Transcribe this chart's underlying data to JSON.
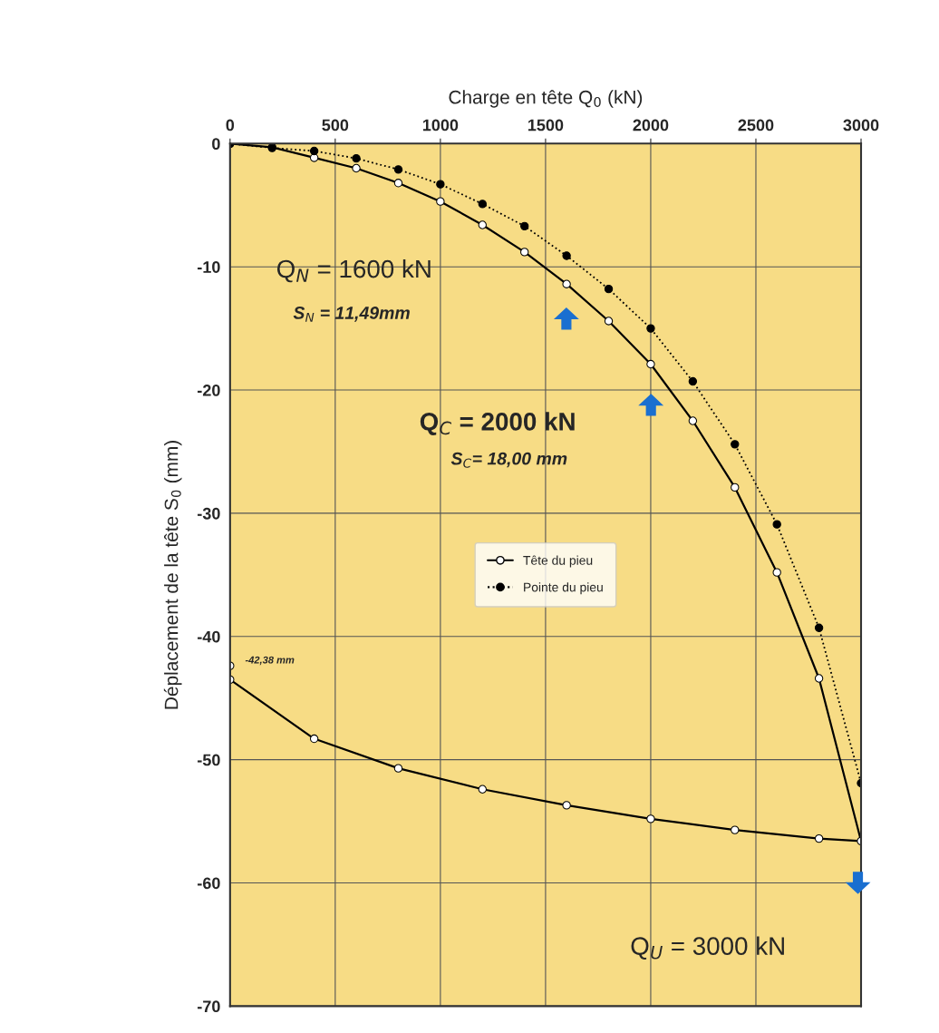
{
  "chart_data": {
    "type": "line",
    "xlabel": "Charge en tête Q$_{0}$ (kN)",
    "ylabel": "Déplacement de la tête S$_{0}$ (mm)",
    "xlim": [
      0,
      3000
    ],
    "xticks": [
      0,
      500,
      1000,
      1500,
      2000,
      2500,
      3000
    ],
    "ylim": [
      -70,
      0
    ],
    "yticks": [
      -70,
      -60,
      -50,
      -40,
      -30,
      -20,
      -10,
      0
    ],
    "grid": true,
    "legend": "center",
    "series": [
      {
        "name": "Tête du pieu",
        "type": "line",
        "color": "#000000",
        "marker": "circle",
        "line_style": "solid",
        "x": [
          0,
          200,
          400,
          600,
          800,
          1000,
          1200,
          1400,
          1600,
          1800,
          2000,
          2200,
          2400,
          2600,
          2800,
          3000,
          2800,
          2400,
          2000,
          1600,
          1200,
          800,
          400,
          0,
          0
        ],
        "values": [
          0,
          -0.3,
          -1.15,
          -2.0,
          -3.2,
          -4.7,
          -6.6,
          -8.8,
          -11.4,
          -14.4,
          -17.9,
          -22.5,
          -27.9,
          -34.8,
          -43.4,
          -56.6,
          -56.4,
          -55.7,
          -54.8,
          -53.7,
          -52.4,
          -50.7,
          -48.3,
          -43.5,
          -42.38
        ]
      },
      {
        "name": "Pointe du pieu",
        "type": "line",
        "color": "#000000",
        "marker": "circle",
        "line_style": "dotted",
        "x": [
          0,
          200,
          400,
          600,
          800,
          1000,
          1200,
          1400,
          1600,
          1800,
          2000,
          2200,
          2400,
          2600,
          2800,
          3000
        ],
        "values": [
          0,
          -0.35,
          -0.6,
          -1.2,
          -2.1,
          -3.3,
          -4.9,
          -6.7,
          -9.1,
          -11.8,
          -15.0,
          -19.3,
          -24.4,
          -30.9,
          -39.3,
          -51.9
        ]
      }
    ],
    "annotations": [
      "Q$_{N}$ = 1600 kN",
      "S$_{N}$ = 11,49mm",
      "Q$_{C}$ = 2000 kN",
      "S$_{C}$= 18,00 mm",
      "Q$_{U}$ = 3000 kN",
      {
        "text": "-42,38 mm",
        "x": 0,
        "y": -42.38
      }
    ]
  }
}
